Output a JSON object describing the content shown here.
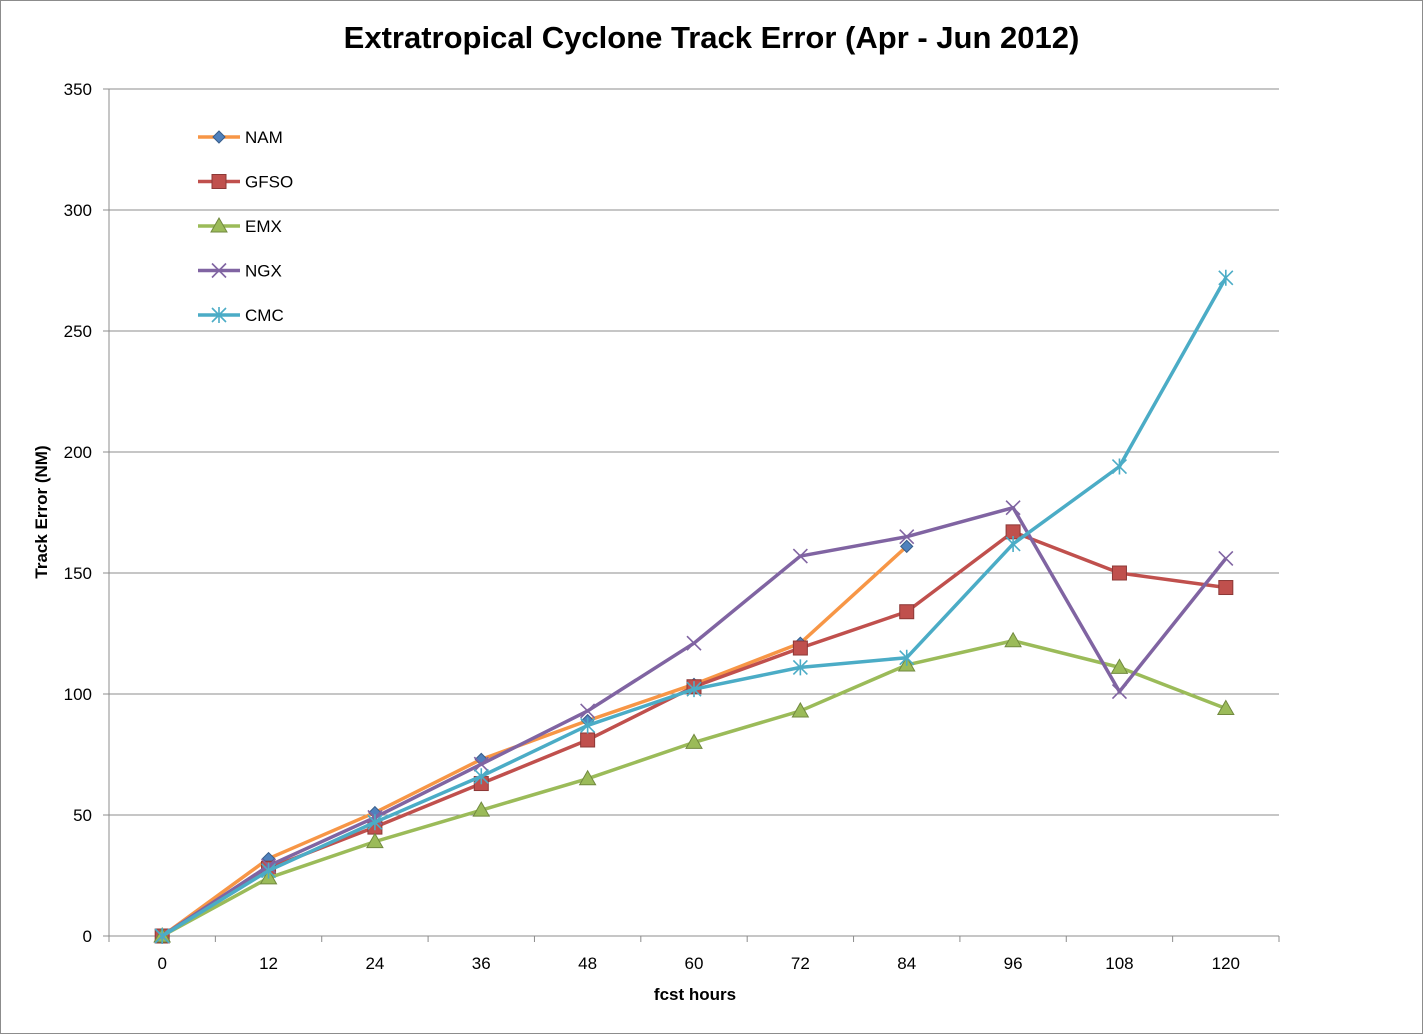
{
  "chart_data": {
    "type": "line",
    "title": "Extratropical Cyclone Track Error (Apr - Jun 2012)",
    "xlabel": "fcst hours",
    "ylabel": "Track Error  (NM)",
    "categories": [
      "0",
      "12",
      "24",
      "36",
      "48",
      "60",
      "72",
      "84",
      "96",
      "108",
      "120"
    ],
    "ylim": [
      0,
      350
    ],
    "yticks": [
      0,
      50,
      100,
      150,
      200,
      250,
      300,
      350
    ],
    "grid": "horizontal",
    "legend_position": "top-left",
    "series": [
      {
        "name": "NAM",
        "color": "#f79646",
        "marker": "diamond",
        "marker_color": "#4f81bd",
        "values": [
          0,
          32,
          51,
          73,
          89,
          104,
          121,
          161,
          null,
          null,
          null
        ]
      },
      {
        "name": "GFSO",
        "color": "#c0504d",
        "marker": "square",
        "marker_color": "#c0504d",
        "values": [
          0,
          28,
          45,
          63,
          81,
          103,
          119,
          134,
          167,
          150,
          144
        ]
      },
      {
        "name": "EMX",
        "color": "#9bbb59",
        "marker": "triangle",
        "marker_color": "#9bbb59",
        "values": [
          0,
          24,
          39,
          52,
          65,
          80,
          93,
          112,
          122,
          111,
          94
        ]
      },
      {
        "name": "NGX",
        "color": "#8064a2",
        "marker": "x",
        "marker_color": "#8064a2",
        "values": [
          0,
          29,
          49,
          71,
          93,
          121,
          157,
          165,
          177,
          101,
          156
        ]
      },
      {
        "name": "CMC",
        "color": "#4bacc6",
        "marker": "star",
        "marker_color": "#4bacc6",
        "values": [
          0,
          27,
          47,
          66,
          87,
          102,
          111,
          115,
          162,
          194,
          272
        ]
      }
    ]
  }
}
